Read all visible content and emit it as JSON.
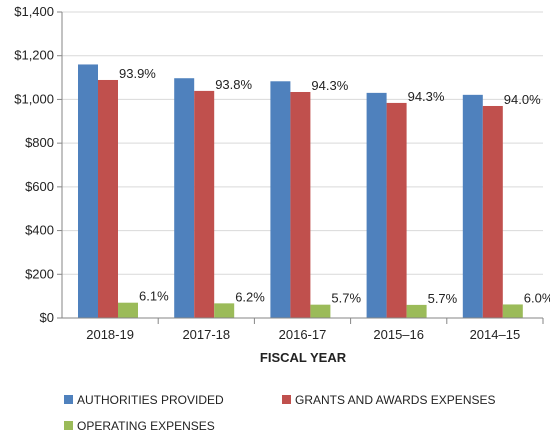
{
  "chart_data": {
    "type": "bar",
    "title": "",
    "xlabel": "FISCAL YEAR",
    "ylabel": "",
    "categories": [
      "2018-19",
      "2017-18",
      "2016-17",
      "2015–16",
      "2014–15"
    ],
    "series": [
      {
        "name": "AUTHORITIES PROVIDED",
        "color": "#4F81BD",
        "values": [
          1160,
          1097,
          1083,
          1030,
          1021
        ]
      },
      {
        "name": "GRANTS AND AWARDS EXPENSES",
        "color": "#C0504D",
        "values": [
          1089,
          1039,
          1034,
          984,
          970
        ],
        "labels": [
          "93.9%",
          "93.8%",
          "94.3%",
          "94.3%",
          "94.0%"
        ]
      },
      {
        "name": "OPERATING EXPENSES",
        "color": "#9BBB59",
        "values": [
          70,
          67,
          61,
          60,
          62
        ],
        "labels": [
          "6.1%",
          "6.2%",
          "5.7%",
          "5.7%",
          "6.0%"
        ]
      }
    ],
    "ylim": [
      0,
      1400
    ],
    "yticks": [
      "$0",
      "$200",
      "$400",
      "$600",
      "$800",
      "$1,000",
      "$1,200",
      "$1,400"
    ],
    "grid": true,
    "legend_position": "bottom"
  }
}
